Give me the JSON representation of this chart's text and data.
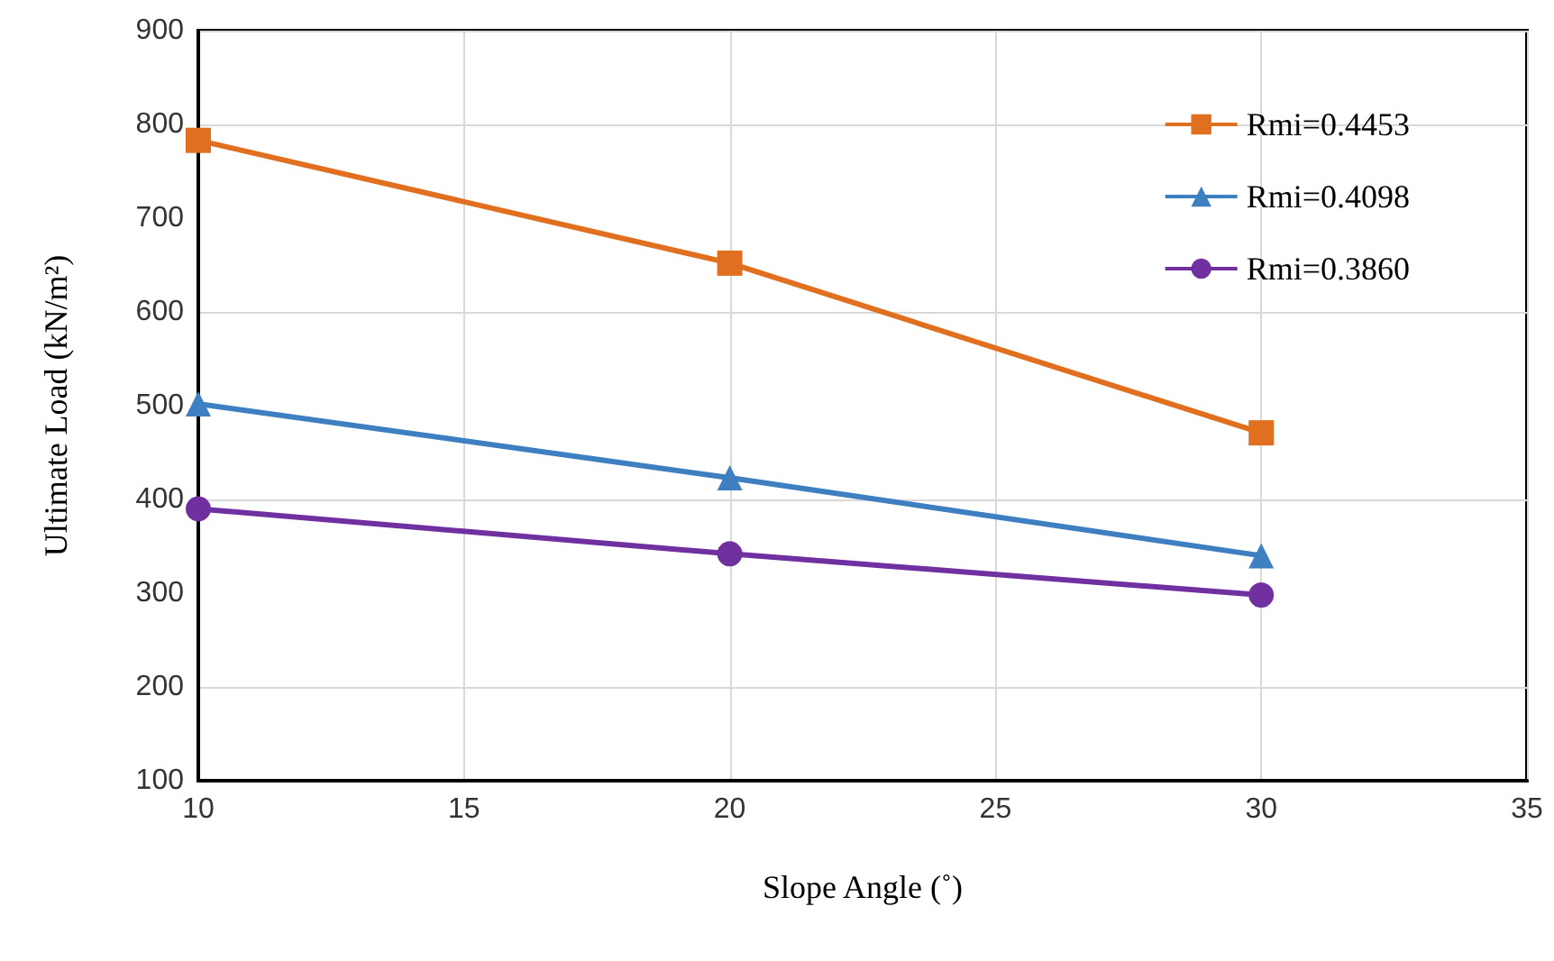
{
  "chart_data": {
    "type": "line",
    "xlabel": "Slope Angle (˚)",
    "ylabel": "Ultimate Load (kN/m²)",
    "series": [
      {
        "name": "Rmi=0.4453",
        "color": "#e0701f",
        "marker": "square",
        "x": [
          10,
          20,
          30
        ],
        "values": [
          783,
          652,
          471
        ]
      },
      {
        "name": "Rmi=0.4098",
        "color": "#3d7fc0",
        "marker": "triangle",
        "x": [
          10,
          20,
          30
        ],
        "values": [
          502,
          423,
          340
        ]
      },
      {
        "name": "Rmi=0.3860",
        "color": "#7030a0",
        "marker": "circle",
        "x": [
          10,
          20,
          30
        ],
        "values": [
          390,
          342,
          298
        ]
      }
    ],
    "xlim": [
      10,
      35
    ],
    "xticks": [
      10,
      15,
      20,
      25,
      30,
      35
    ],
    "ylim": [
      100,
      900
    ],
    "yticks": [
      100,
      200,
      300,
      400,
      500,
      600,
      700,
      800,
      900
    ],
    "grid": true,
    "legend": "top right"
  }
}
